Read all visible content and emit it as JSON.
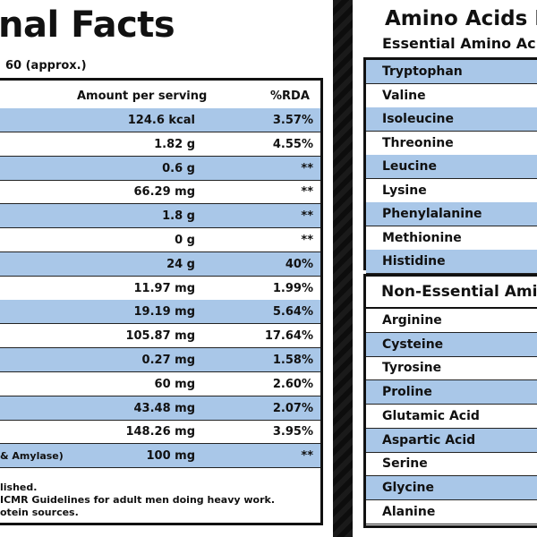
{
  "nutrition": {
    "title": "nal Facts",
    "servings_text": "60 (approx.)",
    "col_amount": "Amount per serving",
    "col_rda": "%RDA",
    "rows": [
      {
        "name": "",
        "amount": "124.6 kcal",
        "rda": "3.57%"
      },
      {
        "name": "",
        "amount": "1.82 g",
        "rda": "4.55%"
      },
      {
        "name": "",
        "amount": "0.6 g",
        "rda": "**"
      },
      {
        "name": "",
        "amount": "66.29 mg",
        "rda": "**"
      },
      {
        "name": "",
        "amount": "1.8 g",
        "rda": "**"
      },
      {
        "name": "",
        "amount": "0 g",
        "rda": "**"
      },
      {
        "name": "",
        "amount": "24 g",
        "rda": "40%"
      },
      {
        "name": "",
        "amount": "11.97 mg",
        "rda": "1.99%"
      },
      {
        "name": "",
        "amount": "19.19 mg",
        "rda": "5.64%"
      },
      {
        "name": "",
        "amount": "105.87 mg",
        "rda": "17.64%"
      },
      {
        "name": "",
        "amount": "0.27 mg",
        "rda": "1.58%"
      },
      {
        "name": "",
        "amount": "60 mg",
        "rda": "2.60%"
      },
      {
        "name": "",
        "amount": "43.48 mg",
        "rda": "2.07%"
      },
      {
        "name": "",
        "amount": "148.26 mg",
        "rda": "3.95%"
      },
      {
        "name": "& Amylase)",
        "amount": "100 mg",
        "rda": "**"
      }
    ],
    "notes": [
      "lished.",
      "ICMR Guidelines for adult men doing heavy work.",
      "otein sources."
    ]
  },
  "amino": {
    "title": "Amino Acids I",
    "subtitle": "Essential Amino Ac",
    "essential": [
      "Tryptophan",
      "Valine",
      "Isoleucine",
      "Threonine",
      "Leucine",
      "Lysine",
      "Phenylalanine",
      "Methionine",
      "Histidine"
    ],
    "non_essential_title": "Non-Essential Amin",
    "non_essential": [
      "Arginine",
      "Cysteine",
      "Tyrosine",
      "Proline",
      "Glutamic Acid",
      "Aspartic Acid",
      "Serine",
      "Glycine",
      "Alanine"
    ]
  },
  "colors": {
    "row_blue": "#a9c7e8",
    "background": "#111111"
  }
}
